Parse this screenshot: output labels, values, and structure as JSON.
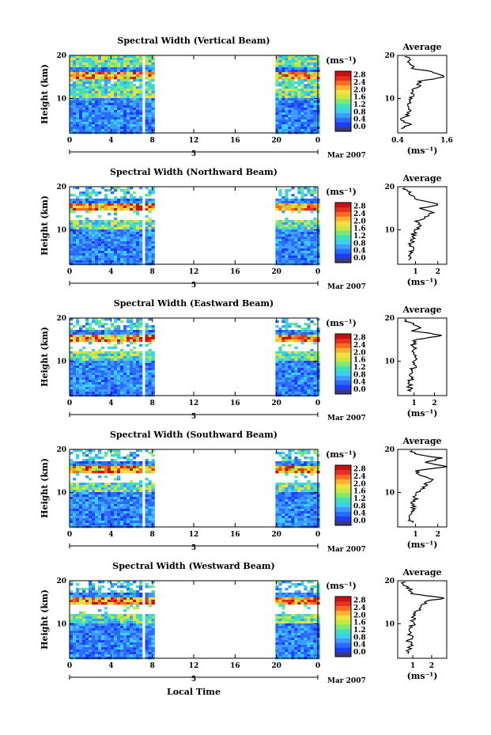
{
  "colors": {
    "scale": [
      "#3a3a7a",
      "#1c3cff",
      "#2a6cff",
      "#3e9cff",
      "#3cd0f0",
      "#40e0b8",
      "#7ce878",
      "#c8e840",
      "#f2e040",
      "#ffb030",
      "#ff6a20",
      "#e83020",
      "#c81010"
    ],
    "line": "#000000"
  },
  "chart_data": [
    {
      "type": "heatmap",
      "title": "Spectral Width (Vertical Beam)",
      "ylabel": "Height (km)",
      "xlim": [
        0,
        24
      ],
      "ylim": [
        2,
        20
      ],
      "xticks": [
        "0",
        "4",
        "8",
        "12",
        "16",
        "20",
        "0"
      ],
      "yticks": [
        "10",
        "20"
      ],
      "date_label": "5",
      "month_label": "Mar 2007",
      "data_spans_hours": [
        [
          0,
          7.0
        ],
        [
          7.3,
          8.2
        ],
        [
          19.9,
          24
        ]
      ],
      "colorbar": {
        "unit": "(ms⁻¹)",
        "ticks": [
          "0.0",
          "0.4",
          "0.8",
          "1.2",
          "1.6",
          "2.0",
          "2.4",
          "2.8"
        ],
        "range": [
          0,
          3.0
        ]
      },
      "average": {
        "title": "Average",
        "xlabel": "(ms⁻¹)",
        "xticks": [
          "0.4",
          "1.6"
        ],
        "xlim": [
          0.4,
          1.6
        ],
        "yticks": [
          "10",
          "20"
        ],
        "height": [
          3,
          4,
          5,
          6,
          7,
          8,
          9,
          10,
          11,
          12,
          13,
          14,
          15,
          16,
          17,
          18,
          19,
          20
        ],
        "value": [
          0.55,
          0.7,
          0.5,
          0.62,
          0.68,
          0.66,
          0.72,
          0.75,
          0.8,
          0.78,
          0.9,
          0.95,
          1.5,
          1.3,
          0.8,
          0.7,
          0.65,
          0.6
        ]
      }
    },
    {
      "type": "heatmap",
      "title": "Spectral Width (Northward Beam)",
      "ylabel": "Height (km)",
      "xlim": [
        0,
        24
      ],
      "ylim": [
        2,
        20
      ],
      "xticks": [
        "0",
        "4",
        "8",
        "12",
        "16",
        "20",
        "0"
      ],
      "yticks": [
        "10",
        "20"
      ],
      "date_label": "5",
      "month_label": "Mar 2007",
      "data_spans_hours": [
        [
          0,
          7.0
        ],
        [
          7.3,
          8.2
        ],
        [
          19.9,
          24
        ]
      ],
      "colorbar": {
        "unit": "(ms⁻¹)",
        "ticks": [
          "0.0",
          "0.4",
          "0.8",
          "1.2",
          "1.6",
          "2.0",
          "2.4",
          "2.8"
        ],
        "range": [
          0,
          3.0
        ]
      },
      "average": {
        "title": "Average",
        "xlabel": "(ms⁻¹)",
        "xticks": [
          "1",
          "2"
        ],
        "xlim": [
          0.2,
          2.4
        ],
        "yticks": [
          "10",
          "20"
        ],
        "height": [
          3,
          4,
          5,
          6,
          7,
          8,
          9,
          10,
          11,
          12,
          13,
          14,
          15,
          16,
          17,
          18,
          19,
          20
        ],
        "value": [
          0.8,
          0.75,
          0.8,
          0.85,
          0.8,
          0.9,
          0.9,
          1.0,
          1.3,
          1.1,
          1.4,
          1.7,
          1.3,
          2.1,
          1.0,
          0.9,
          0.6,
          0.5
        ]
      }
    },
    {
      "type": "heatmap",
      "title": "Spectral Width (Eastward Beam)",
      "ylabel": "Height (km)",
      "xlim": [
        0,
        24
      ],
      "ylim": [
        2,
        20
      ],
      "xticks": [
        "0",
        "4",
        "8",
        "12",
        "16",
        "20",
        "0"
      ],
      "yticks": [
        "10",
        "20"
      ],
      "date_label": "5",
      "month_label": "Mar 2007",
      "data_spans_hours": [
        [
          0,
          7.0
        ],
        [
          7.3,
          8.2
        ],
        [
          19.9,
          24
        ]
      ],
      "colorbar": {
        "unit": "(ms⁻¹)",
        "ticks": [
          "0.0",
          "0.4",
          "0.8",
          "1.2",
          "1.6",
          "2.0",
          "2.4",
          "2.8"
        ],
        "range": [
          0,
          3.0
        ]
      },
      "average": {
        "title": "Average",
        "xlabel": "(ms⁻¹)",
        "xticks": [
          "1",
          "2"
        ],
        "xlim": [
          0.2,
          2.6
        ],
        "yticks": [
          "10",
          "20"
        ],
        "height": [
          3,
          4,
          5,
          6,
          7,
          8,
          9,
          10,
          11,
          12,
          13,
          14,
          15,
          16,
          17,
          18,
          19,
          20
        ],
        "value": [
          0.75,
          0.8,
          0.8,
          0.85,
          0.9,
          0.95,
          1.0,
          1.05,
          1.1,
          1.05,
          1.0,
          0.95,
          1.1,
          2.5,
          0.9,
          1.3,
          0.7,
          0.6
        ]
      }
    },
    {
      "type": "heatmap",
      "title": "Spectral Width (Southward Beam)",
      "ylabel": "Height (km)",
      "xlim": [
        0,
        24
      ],
      "ylim": [
        2,
        20
      ],
      "xticks": [
        "0",
        "4",
        "8",
        "12",
        "16",
        "20",
        "0"
      ],
      "yticks": [
        "10",
        "20"
      ],
      "date_label": "5",
      "month_label": "Mar 2007",
      "data_spans_hours": [
        [
          0,
          7.0
        ],
        [
          7.3,
          8.2
        ],
        [
          19.9,
          24
        ]
      ],
      "colorbar": {
        "unit": "(ms⁻¹)",
        "ticks": [
          "0.0",
          "0.4",
          "0.8",
          "1.2",
          "1.6",
          "2.0",
          "2.4",
          "2.8"
        ],
        "range": [
          0,
          3.0
        ]
      },
      "average": {
        "title": "Average",
        "xlabel": "(ms⁻¹)",
        "xticks": [
          "1",
          "2"
        ],
        "xlim": [
          0.2,
          2.4
        ],
        "yticks": [
          "10",
          "20"
        ],
        "height": [
          3,
          4,
          5,
          6,
          7,
          8,
          9,
          10,
          11,
          12,
          13,
          14,
          15,
          16,
          17,
          18,
          19,
          20
        ],
        "value": [
          0.8,
          0.8,
          0.85,
          0.9,
          0.9,
          0.95,
          1.0,
          1.1,
          1.3,
          1.5,
          1.8,
          1.2,
          1.0,
          2.3,
          1.5,
          2.1,
          0.9,
          0.7
        ]
      }
    },
    {
      "type": "heatmap",
      "title": "Spectral Width (Westward Beam)",
      "ylabel": "Height (km)",
      "xlim": [
        0,
        24
      ],
      "ylim": [
        2,
        20
      ],
      "xticks": [
        "0",
        "4",
        "8",
        "12",
        "16",
        "20",
        "0"
      ],
      "yticks": [
        "10",
        "20"
      ],
      "date_label": "5",
      "month_label": "Mar 2007",
      "data_spans_hours": [
        [
          0,
          7.0
        ],
        [
          7.3,
          8.2
        ],
        [
          19.9,
          24
        ]
      ],
      "colorbar": {
        "unit": "(ms⁻¹)",
        "ticks": [
          "0.0",
          "0.4",
          "0.8",
          "1.2",
          "1.6",
          "2.0",
          "2.4",
          "2.8"
        ],
        "range": [
          0,
          3.0
        ]
      },
      "average": {
        "title": "Average",
        "xlabel": "(ms⁻¹)",
        "xticks": [
          "1",
          "2"
        ],
        "xlim": [
          0.2,
          2.8
        ],
        "yticks": [
          "10",
          "20"
        ],
        "height": [
          3,
          4,
          5,
          6,
          7,
          8,
          9,
          10,
          11,
          12,
          13,
          14,
          15,
          16,
          17,
          18,
          19,
          20
        ],
        "value": [
          0.8,
          0.8,
          0.85,
          0.8,
          0.9,
          0.9,
          0.95,
          1.0,
          1.05,
          1.1,
          1.2,
          1.5,
          1.6,
          2.6,
          1.0,
          0.9,
          0.6,
          0.5
        ]
      }
    }
  ],
  "footer": {
    "xlabel": "Local Time"
  }
}
